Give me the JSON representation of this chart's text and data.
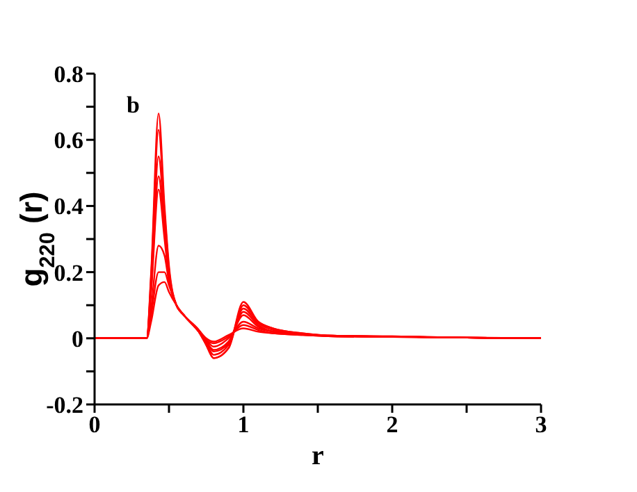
{
  "chart_data": {
    "type": "line",
    "xlabel": "r",
    "ylabel": "g$_{220}$ (r)",
    "annotations": [
      "b"
    ],
    "x": [
      0,
      0.35,
      0.38,
      0.43,
      0.47,
      0.5,
      0.55,
      0.6,
      0.7,
      0.75,
      0.8,
      0.9,
      1.0,
      1.1,
      1.2,
      1.4,
      1.6,
      2.0,
      2.5,
      3.0
    ],
    "series": [
      {
        "color": "#ff0000",
        "values": [
          0,
          0,
          0.2,
          0.68,
          0.4,
          0.22,
          0.1,
          0.07,
          0.02,
          -0.02,
          -0.06,
          -0.03,
          0.11,
          0.05,
          0.03,
          0.015,
          0.008,
          0.006,
          0.002,
          0
        ]
      },
      {
        "color": "#ff0000",
        "values": [
          0,
          0,
          0.19,
          0.63,
          0.38,
          0.21,
          0.1,
          0.07,
          0.02,
          -0.02,
          -0.06,
          -0.03,
          0.1,
          0.05,
          0.03,
          0.015,
          0.008,
          0.006,
          0.002,
          0
        ]
      },
      {
        "color": "#ff0000",
        "values": [
          0,
          0,
          0.17,
          0.55,
          0.35,
          0.2,
          0.1,
          0.07,
          0.02,
          -0.015,
          -0.05,
          -0.02,
          0.09,
          0.045,
          0.025,
          0.013,
          0.008,
          0.005,
          0.002,
          0
        ]
      },
      {
        "color": "#ff0000",
        "values": [
          0,
          0,
          0.15,
          0.49,
          0.32,
          0.19,
          0.1,
          0.07,
          0.02,
          -0.01,
          -0.04,
          -0.015,
          0.08,
          0.04,
          0.02,
          0.012,
          0.007,
          0.005,
          0.002,
          0
        ]
      },
      {
        "color": "#ff0000",
        "values": [
          0,
          0,
          0.14,
          0.45,
          0.3,
          0.18,
          0.1,
          0.07,
          0.02,
          -0.01,
          -0.035,
          -0.01,
          0.07,
          0.035,
          0.02,
          0.012,
          0.007,
          0.005,
          0.002,
          0
        ]
      },
      {
        "color": "#ff0000",
        "values": [
          0,
          0,
          0.09,
          0.28,
          0.25,
          0.17,
          0.1,
          0.07,
          0.025,
          -0.005,
          -0.025,
          0,
          0.05,
          0.03,
          0.02,
          0.012,
          0.007,
          0.005,
          0.002,
          0
        ]
      },
      {
        "color": "#ff0000",
        "values": [
          0,
          0,
          0.07,
          0.2,
          0.2,
          0.16,
          0.1,
          0.07,
          0.025,
          -0.005,
          -0.015,
          0.005,
          0.04,
          0.025,
          0.015,
          0.01,
          0.006,
          0.004,
          0.002,
          0
        ]
      },
      {
        "color": "#ff0000",
        "values": [
          0,
          0,
          0.05,
          0.16,
          0.17,
          0.14,
          0.1,
          0.07,
          0.025,
          0,
          -0.01,
          0.01,
          0.03,
          0.02,
          0.015,
          0.01,
          0.006,
          0.004,
          0.002,
          0
        ]
      }
    ],
    "xlim": [
      0,
      3
    ],
    "xticks": [
      0,
      {
        "value": 0.5,
        "label": null
      },
      1,
      {
        "value": 1.5,
        "label": null
      },
      2,
      {
        "value": 2.5,
        "label": null
      },
      3
    ],
    "ylim": [
      -0.2,
      0.8
    ],
    "yticks": [
      -0.2,
      {
        "value": -0.1,
        "label": null
      },
      0,
      {
        "value": 0.1,
        "label": null
      },
      0.2,
      {
        "value": 0.3,
        "label": null
      },
      0.4,
      {
        "value": 0.5,
        "label": null
      },
      0.6,
      {
        "value": 0.7,
        "label": null
      },
      0.8
    ],
    "grid": false,
    "legend": false,
    "marker": "none",
    "line_style": "solid"
  }
}
